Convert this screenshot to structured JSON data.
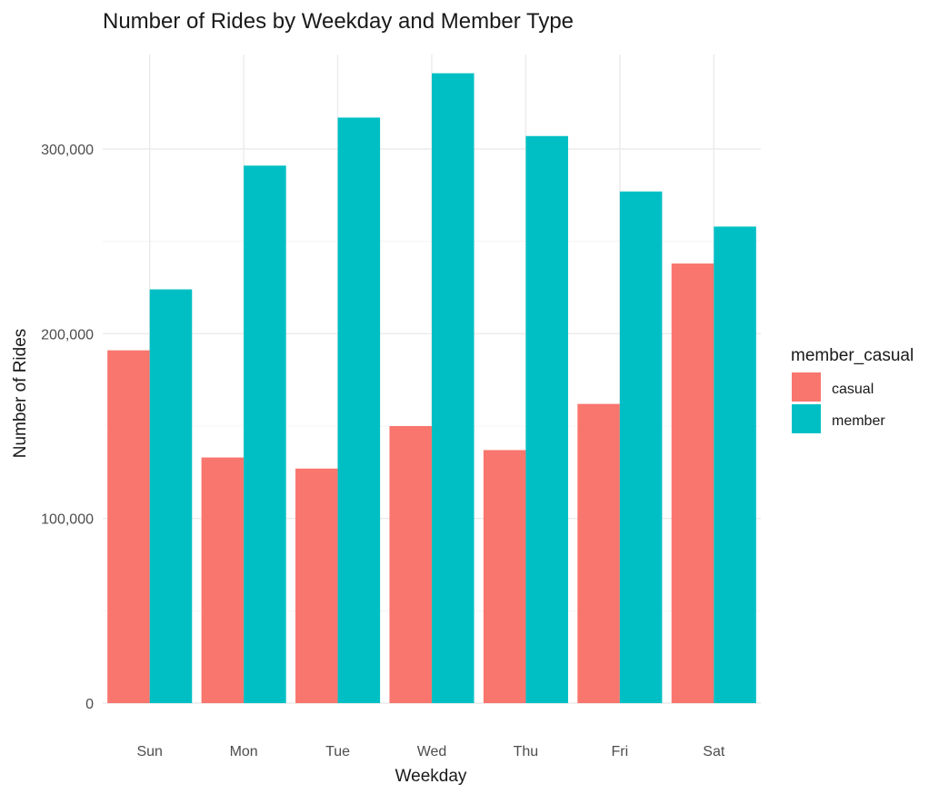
{
  "chart_data": {
    "type": "bar",
    "title": "Number of Rides by Weekday and Member Type",
    "xlabel": "Weekday",
    "ylabel": "Number of Rides",
    "categories": [
      "Sun",
      "Mon",
      "Tue",
      "Wed",
      "Thu",
      "Fri",
      "Sat"
    ],
    "series": [
      {
        "name": "casual",
        "color": "#F8766D",
        "values": [
          191000,
          133000,
          127000,
          150000,
          137000,
          162000,
          238000
        ]
      },
      {
        "name": "member",
        "color": "#00BFC4",
        "values": [
          224000,
          291000,
          317000,
          341000,
          307000,
          277000,
          258000
        ]
      }
    ],
    "ylim": [
      0,
      350000
    ],
    "yticks": [
      0,
      100000,
      200000,
      300000
    ],
    "ytick_labels": [
      "0",
      "100,000",
      "200,000",
      "300,000"
    ],
    "grid": true,
    "legend": {
      "title": "member_casual",
      "placement": "right"
    }
  }
}
